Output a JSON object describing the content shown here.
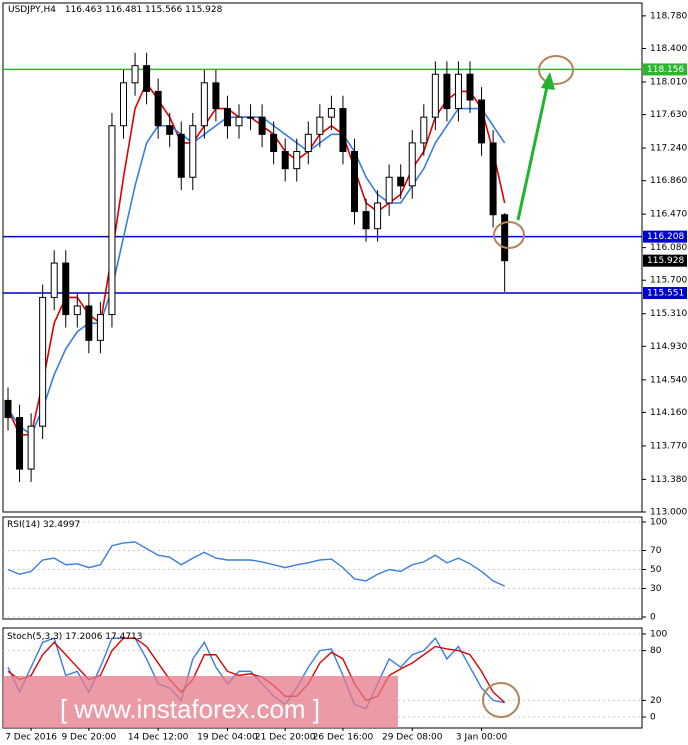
{
  "chart_data": [
    {
      "type": "candlestick",
      "title": "USDJPY,H4",
      "categories": [
        null,
        null,
        "7 Dec 2016",
        null,
        null,
        null,
        null,
        "9 Dec 20:00",
        null,
        null,
        null,
        null,
        null,
        "14 Dec 12:00",
        null,
        null,
        null,
        null,
        null,
        "19 Dec 04:00",
        null,
        null,
        null,
        null,
        "21 Dec 20:00",
        null,
        null,
        null,
        null,
        "26 Dec 16:00",
        null,
        null,
        null,
        null,
        null,
        "29 Dec 08:00",
        null,
        null,
        null,
        null,
        null,
        "3 Jan 00:00",
        null,
        null
      ],
      "open": [
        114.3,
        114.1,
        113.5,
        114.0,
        115.5,
        115.9,
        115.3,
        115.4,
        115.0,
        115.3,
        117.5,
        118.0,
        118.2,
        117.9,
        117.5,
        117.4,
        116.9,
        117.5,
        118.0,
        117.7,
        117.5,
        117.6,
        117.6,
        117.4,
        117.2,
        117.0,
        117.2,
        117.4,
        117.6,
        117.7,
        117.2,
        116.5,
        116.3,
        116.6,
        116.9,
        116.8,
        117.3,
        117.6,
        118.1,
        117.7,
        118.1,
        117.8,
        117.3,
        116.463
      ],
      "high": [
        114.45,
        114.25,
        114.15,
        115.65,
        116.05,
        116.05,
        115.55,
        115.55,
        115.45,
        117.65,
        118.15,
        118.35,
        118.35,
        118.05,
        117.65,
        117.55,
        117.65,
        118.15,
        118.15,
        117.85,
        117.75,
        117.75,
        117.75,
        117.55,
        117.35,
        117.35,
        117.55,
        117.75,
        117.85,
        117.85,
        117.35,
        116.65,
        116.75,
        117.05,
        117.05,
        117.45,
        117.75,
        118.25,
        118.25,
        118.25,
        118.25,
        117.95,
        117.45,
        116.481
      ],
      "low": [
        113.95,
        113.35,
        113.35,
        113.85,
        115.35,
        115.15,
        115.15,
        114.85,
        114.85,
        115.15,
        117.35,
        117.85,
        117.75,
        117.35,
        117.25,
        116.75,
        116.75,
        117.35,
        117.55,
        117.35,
        117.35,
        117.45,
        117.25,
        117.05,
        116.85,
        116.85,
        117.05,
        117.25,
        117.45,
        117.05,
        116.35,
        116.15,
        116.15,
        116.45,
        116.65,
        116.65,
        117.15,
        117.45,
        117.55,
        117.55,
        117.65,
        117.15,
        116.313,
        115.566
      ],
      "close": [
        114.1,
        113.5,
        114.0,
        115.5,
        115.9,
        115.3,
        115.4,
        115.0,
        115.3,
        117.5,
        118.0,
        118.2,
        117.9,
        117.5,
        117.4,
        116.9,
        117.5,
        118.0,
        117.7,
        117.5,
        117.6,
        117.6,
        117.4,
        117.2,
        117.0,
        117.2,
        117.4,
        117.6,
        117.7,
        117.2,
        116.5,
        116.3,
        116.6,
        116.9,
        116.8,
        117.3,
        117.6,
        118.1,
        117.7,
        118.1,
        117.8,
        117.3,
        116.463,
        115.928
      ],
      "overlays": [
        {
          "color": "#e00000",
          "values": [
            114.2,
            113.9,
            113.9,
            114.5,
            115.2,
            115.5,
            115.5,
            115.3,
            115.2,
            116.0,
            116.9,
            117.7,
            118.0,
            117.8,
            117.6,
            117.3,
            117.3,
            117.5,
            117.7,
            117.7,
            117.6,
            117.6,
            117.5,
            117.4,
            117.2,
            117.1,
            117.2,
            117.4,
            117.5,
            117.4,
            117.0,
            116.6,
            116.5,
            116.6,
            116.7,
            117.0,
            117.2,
            117.6,
            117.8,
            117.9,
            117.9,
            117.7,
            117.2,
            116.6
          ]
        },
        {
          "color": "#3a7de0",
          "values": [
            114.2,
            114.0,
            113.9,
            114.2,
            114.6,
            114.9,
            115.1,
            115.2,
            115.2,
            115.6,
            116.2,
            116.8,
            117.3,
            117.5,
            117.5,
            117.4,
            117.3,
            117.4,
            117.5,
            117.6,
            117.6,
            117.6,
            117.6,
            117.5,
            117.4,
            117.3,
            117.2,
            117.3,
            117.4,
            117.4,
            117.2,
            116.9,
            116.7,
            116.6,
            116.6,
            116.8,
            117.0,
            117.3,
            117.5,
            117.7,
            117.7,
            117.7,
            117.5,
            117.3
          ]
        }
      ],
      "hlines": [
        {
          "value": 118.156,
          "color": "#2db52d"
        },
        {
          "value": 116.208,
          "color": "#0000cc"
        },
        {
          "value": 115.551,
          "color": "#0000cc"
        }
      ],
      "ylim": [
        113.0,
        118.93
      ],
      "yticks": [
        {
          "value": 118.78,
          "label": "118.780"
        },
        {
          "value": 118.4,
          "label": "118.400"
        },
        {
          "value": 118.01,
          "label": "118.010"
        },
        {
          "value": 117.63,
          "label": "117.630"
        },
        {
          "value": 117.24,
          "label": "117.240"
        },
        {
          "value": 116.86,
          "label": "116.860"
        },
        {
          "value": 116.47,
          "label": "116.470"
        },
        {
          "value": 116.08,
          "label": "116.080"
        },
        {
          "value": 115.7,
          "label": "115.700"
        },
        {
          "value": 115.31,
          "label": "115.310"
        },
        {
          "value": 114.93,
          "label": "114.930"
        },
        {
          "value": 114.54,
          "label": "114.540"
        },
        {
          "value": 114.16,
          "label": "114.160"
        },
        {
          "value": 113.77,
          "label": "113.770"
        },
        {
          "value": 113.38,
          "label": "113.380"
        },
        {
          "value": 113.0,
          "label": "113.000"
        }
      ]
    },
    {
      "type": "line",
      "title": "RSI(14)",
      "series": [
        {
          "color": "#3a7de0",
          "values": [
            50,
            45,
            48,
            60,
            62,
            55,
            56,
            52,
            55,
            75,
            78,
            79,
            72,
            65,
            63,
            55,
            62,
            68,
            62,
            60,
            60,
            60,
            58,
            55,
            52,
            55,
            57,
            60,
            61,
            52,
            40,
            38,
            45,
            50,
            48,
            55,
            58,
            65,
            57,
            62,
            56,
            48,
            38,
            32.4997
          ]
        }
      ],
      "ylim": [
        0,
        100
      ],
      "yticks": [
        100,
        70,
        50,
        30,
        0
      ]
    },
    {
      "type": "line",
      "title": "Stoch(5,3,3)",
      "series": [
        {
          "color": "#3a7de0",
          "values": [
            60,
            30,
            60,
            90,
            95,
            50,
            55,
            30,
            60,
            95,
            95,
            95,
            70,
            40,
            35,
            20,
            70,
            90,
            60,
            40,
            55,
            55,
            40,
            25,
            15,
            35,
            60,
            80,
            82,
            50,
            15,
            10,
            40,
            70,
            60,
            75,
            80,
            95,
            70,
            85,
            60,
            35,
            20,
            17.2006
          ]
        },
        {
          "color": "#e00000",
          "values": [
            55,
            45,
            50,
            75,
            90,
            75,
            60,
            45,
            50,
            80,
            95,
            95,
            85,
            65,
            45,
            30,
            45,
            75,
            75,
            55,
            50,
            52,
            48,
            38,
            25,
            25,
            40,
            65,
            78,
            70,
            40,
            20,
            25,
            50,
            58,
            65,
            75,
            85,
            82,
            80,
            75,
            55,
            30,
            17.4713
          ]
        }
      ],
      "ylim": [
        0,
        100
      ],
      "yticks": [
        100,
        80,
        20,
        0
      ]
    }
  ],
  "watermark": "[ www.instaforex.com ]"
}
